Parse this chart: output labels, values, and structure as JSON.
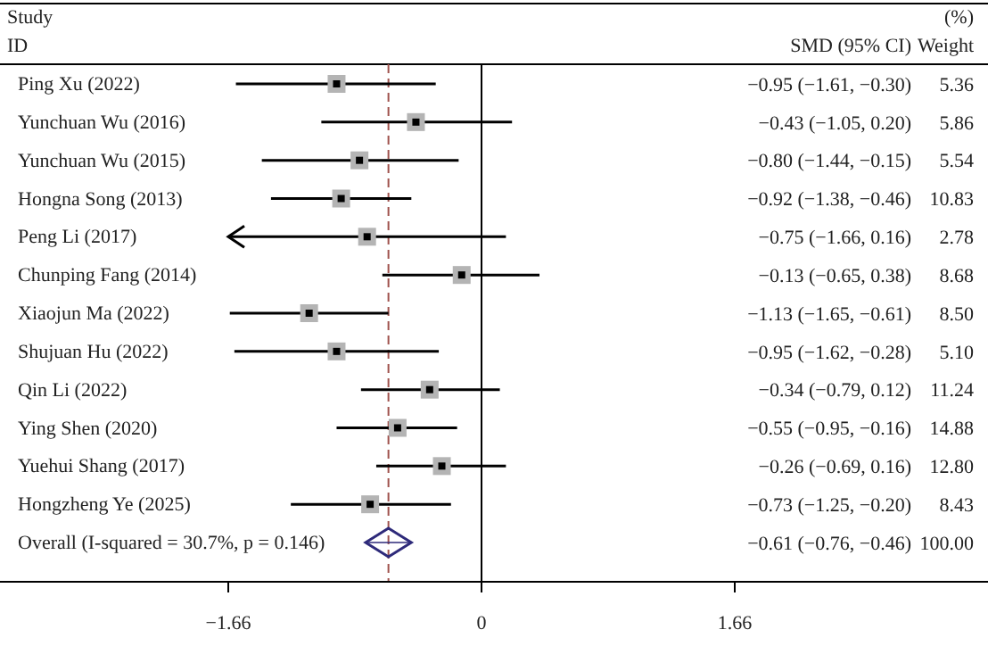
{
  "chart_data": {
    "type": "scatter",
    "orientation": "horizontal",
    "categories": [
      "Ping Xu (2022)",
      "Yunchuan Wu (2016)",
      "Yunchuan Wu (2015)",
      "Hongna Song (2013)",
      "Peng Li (2017)",
      "Chunping Fang (2014)",
      "Xiaojun Ma (2022)",
      "Shujuan Hu (2022)",
      "Qin Li (2022)",
      "Ying Shen (2020)",
      "Yuehui Shang (2017)",
      "Hongzheng Ye (2025)",
      "Overall (I-squared = 30.7%, p = 0.146)"
    ],
    "series": [
      {
        "marker": "square",
        "color": "#000000",
        "values": [
          -0.95,
          -0.43,
          -0.8,
          -0.92,
          -0.75,
          -0.13,
          -1.13,
          -0.95,
          -0.34,
          -0.55,
          -0.26,
          -0.73,
          null
        ],
        "errors": [
          [
            -1.61,
            -0.3
          ],
          [
            -1.05,
            0.2
          ],
          [
            -1.44,
            -0.15
          ],
          [
            -1.38,
            -0.46
          ],
          [
            -1.66,
            0.16
          ],
          [
            -0.65,
            0.38
          ],
          [
            -1.65,
            -0.61
          ],
          [
            -1.62,
            -0.28
          ],
          [
            -0.79,
            0.12
          ],
          [
            -0.95,
            -0.16
          ],
          [
            -0.69,
            0.16
          ],
          [
            -1.25,
            -0.2
          ],
          null
        ],
        "value_labels": [
          "−0.95 (−1.61, −0.30)",
          "−0.43 (−1.05, 0.20)",
          "−0.80 (−1.44, −0.15)",
          "−0.92 (−1.38, −0.46)",
          "−0.75 (−1.66, 0.16)",
          "−0.13 (−0.65, 0.38)",
          "−1.13 (−1.65, −0.61)",
          "−0.95 (−1.62, −0.28)",
          "−0.34 (−0.79, 0.12)",
          "−0.55 (−0.95, −0.16)",
          "−0.26 (−0.69, 0.16)",
          "−0.73 (−1.25, −0.20)",
          null
        ]
      },
      {
        "marker": "diamond",
        "color": "#2e2a7a",
        "values": [
          null,
          null,
          null,
          null,
          null,
          null,
          null,
          null,
          null,
          null,
          null,
          null,
          -0.61
        ],
        "errors": [
          null,
          null,
          null,
          null,
          null,
          null,
          null,
          null,
          null,
          null,
          null,
          null,
          [
            -0.76,
            -0.46
          ]
        ]
      }
    ],
    "xlim": [
      -1.66,
      1.66
    ],
    "xticks": [
      {
        "value": -1.66,
        "label": "−1.66"
      },
      0,
      {
        "value": 1.66,
        "label": "1.66"
      }
    ],
    "ref_lines": [
      {
        "axis": "x",
        "value": 0,
        "color": "#000000",
        "line_style": "solid"
      },
      {
        "axis": "x",
        "value": -0.61,
        "color": "#a0524d",
        "line_style": "dashed"
      }
    ],
    "annotations": [
      "Study",
      "ID",
      "SMD (95% CI)",
      "(%)",
      "Weight",
      "5.36",
      "5.86",
      "5.54",
      "10.83",
      "2.78",
      "8.68",
      "8.50",
      "5.10",
      "11.24",
      "14.88",
      "12.80",
      "8.43",
      "100.00",
      "−0.61 (−0.76, −0.46)"
    ]
  }
}
